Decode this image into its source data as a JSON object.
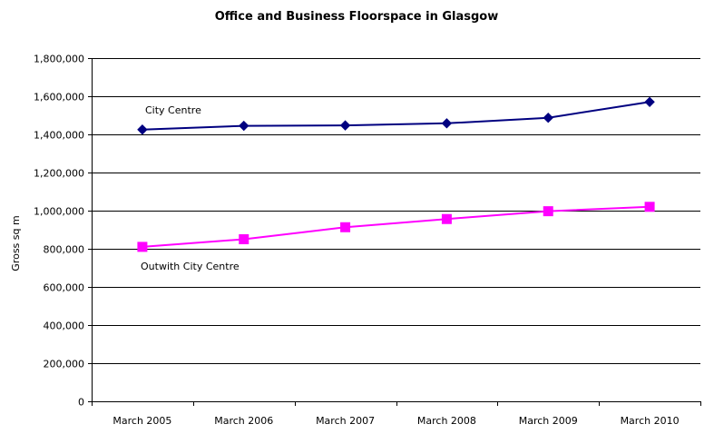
{
  "chart_data": {
    "type": "line",
    "title": "Office and Business Floorspace in Glasgow",
    "xlabel": "",
    "ylabel": "Gross sq m",
    "categories": [
      "March 2005",
      "March 2006",
      "March 2007",
      "March 2008",
      "March 2009",
      "March 2010"
    ],
    "ylim": [
      0,
      1800000
    ],
    "yticks": [
      0,
      200000,
      400000,
      600000,
      800000,
      1000000,
      1200000,
      1400000,
      1600000,
      1800000
    ],
    "ytick_labels": [
      "0",
      "200,000",
      "400,000",
      "600,000",
      "800,000",
      "1,000,000",
      "1,200,000",
      "1,400,000",
      "1,600,000",
      "1,800,000"
    ],
    "grid": true,
    "legend": "none (series labeled directly on chart)",
    "series": [
      {
        "name": "City Centre",
        "color": "#000080",
        "marker": "diamond",
        "values": [
          1425000,
          1445000,
          1447000,
          1458000,
          1487000,
          1570000
        ]
      },
      {
        "name": "Outwith City Centre",
        "color": "#ff00ff",
        "marker": "square",
        "values": [
          810000,
          850000,
          913000,
          956000,
          997000,
          1020000
        ]
      }
    ]
  }
}
